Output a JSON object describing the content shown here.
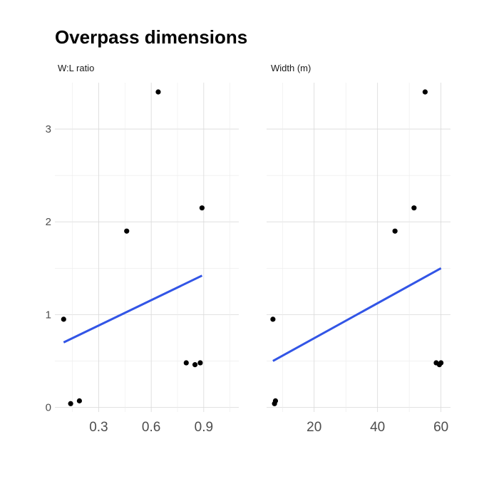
{
  "chart_data": {
    "type": "scatter",
    "title": "Overpass dimensions",
    "y_ticks": [
      0,
      1,
      2,
      3
    ],
    "ylim": [
      -0.05,
      3.5
    ],
    "grid": true,
    "trend_color": "#3255e6",
    "point_color": "#000000",
    "panels": [
      {
        "label": "W:L ratio",
        "xlim": [
          0.05,
          1.1
        ],
        "x_ticks": [
          0.3,
          0.6,
          0.9
        ],
        "x_tick_labels": [
          "0.3",
          "0.6",
          "0.9"
        ],
        "x_minor": [
          0.15,
          0.45,
          0.75,
          1.05
        ],
        "points": [
          {
            "x": 0.1,
            "y": 0.95
          },
          {
            "x": 0.14,
            "y": 0.04
          },
          {
            "x": 0.19,
            "y": 0.07
          },
          {
            "x": 0.46,
            "y": 1.9
          },
          {
            "x": 0.64,
            "y": 3.4
          },
          {
            "x": 0.8,
            "y": 0.48
          },
          {
            "x": 0.85,
            "y": 0.46
          },
          {
            "x": 0.88,
            "y": 0.48
          },
          {
            "x": 0.89,
            "y": 2.15
          }
        ],
        "trend": [
          {
            "x": 0.1,
            "y": 0.7
          },
          {
            "x": 0.89,
            "y": 1.42
          }
        ]
      },
      {
        "label": "Width (m)",
        "xlim": [
          5,
          63
        ],
        "x_ticks": [
          20,
          40,
          60
        ],
        "x_tick_labels": [
          "20",
          "40",
          "60"
        ],
        "x_minor": [
          10,
          30,
          50
        ],
        "points": [
          {
            "x": 7.0,
            "y": 0.95
          },
          {
            "x": 7.5,
            "y": 0.04
          },
          {
            "x": 7.8,
            "y": 0.07
          },
          {
            "x": 45.5,
            "y": 1.9
          },
          {
            "x": 51.5,
            "y": 2.15
          },
          {
            "x": 55.0,
            "y": 3.4
          },
          {
            "x": 58.5,
            "y": 0.48
          },
          {
            "x": 59.5,
            "y": 0.46
          },
          {
            "x": 60.0,
            "y": 0.48
          }
        ],
        "trend": [
          {
            "x": 7.0,
            "y": 0.5
          },
          {
            "x": 60.0,
            "y": 1.5
          }
        ]
      }
    ]
  }
}
